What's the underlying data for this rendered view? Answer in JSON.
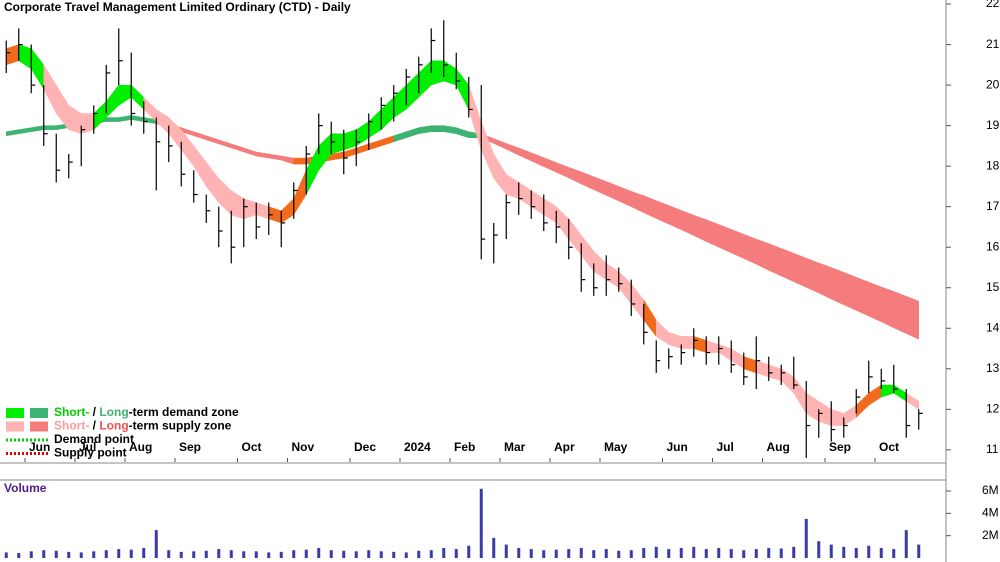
{
  "chart_data": {
    "type": "hlc",
    "title": "Corporate Travel Management Limited Ordinary (CTD) - Daily",
    "categories": [
      null,
      null,
      "Jun",
      null,
      null,
      null,
      "Jul",
      null,
      null,
      null,
      "Aug",
      null,
      null,
      null,
      "Sep",
      null,
      null,
      null,
      null,
      "Oct",
      null,
      null,
      null,
      "Nov",
      null,
      null,
      null,
      null,
      "Dec",
      null,
      null,
      null,
      "2024",
      null,
      null,
      null,
      "Feb",
      null,
      null,
      null,
      "Mar",
      null,
      null,
      null,
      "Apr",
      null,
      null,
      null,
      "May",
      null,
      null,
      null,
      null,
      "Jun",
      null,
      null,
      null,
      "Jul",
      null,
      null,
      null,
      "Aug",
      null,
      null,
      null,
      null,
      "Sep",
      null,
      null,
      null,
      "Oct",
      null,
      null,
      null
    ],
    "high": [
      21.1,
      21.4,
      21.0,
      20.0,
      18.8,
      18.3,
      19.0,
      19.5,
      20.5,
      21.4,
      20.8,
      19.6,
      19.2,
      19.0,
      18.6,
      17.9,
      17.3,
      17.0,
      16.9,
      17.2,
      17.1,
      17.1,
      16.9,
      17.6,
      18.5,
      19.3,
      19.1,
      18.9,
      18.9,
      19.3,
      19.7,
      20.0,
      20.4,
      20.7,
      21.4,
      21.6,
      20.8,
      20.2,
      20.0,
      16.6,
      17.3,
      17.6,
      17.4,
      17.3,
      16.9,
      16.7,
      16.1,
      15.6,
      15.8,
      15.5,
      15.2,
      14.6,
      13.7,
      13.5,
      13.6,
      14.0,
      13.8,
      13.8,
      13.7,
      13.4,
      13.8,
      13.3,
      13.1,
      13.3,
      12.7,
      12.0,
      12.2,
      11.8,
      12.5,
      13.2,
      13.0,
      13.1,
      12.5,
      12.0
    ],
    "low": [
      20.3,
      20.6,
      19.8,
      18.5,
      17.6,
      17.7,
      18.0,
      18.8,
      19.3,
      20.0,
      19.0,
      18.8,
      17.4,
      18.1,
      17.5,
      17.1,
      16.6,
      16.0,
      15.6,
      16.0,
      16.2,
      16.3,
      16.0,
      16.7,
      17.3,
      18.3,
      18.3,
      17.8,
      18.0,
      18.4,
      18.9,
      19.1,
      19.5,
      19.8,
      20.3,
      20.2,
      19.9,
      19.2,
      15.7,
      15.6,
      16.2,
      16.8,
      16.7,
      16.4,
      16.1,
      15.7,
      14.9,
      14.8,
      14.8,
      14.9,
      14.3,
      13.6,
      12.9,
      13.0,
      13.1,
      13.3,
      13.1,
      13.1,
      12.9,
      12.6,
      12.5,
      12.7,
      12.6,
      12.5,
      10.8,
      11.3,
      11.2,
      11.3,
      11.9,
      12.4,
      12.5,
      12.4,
      11.3,
      11.5
    ],
    "close": [
      20.8,
      21.0,
      20.0,
      18.8,
      17.9,
      18.1,
      18.9,
      19.3,
      20.3,
      20.6,
      19.3,
      19.1,
      18.6,
      18.5,
      17.8,
      17.3,
      16.9,
      16.4,
      16.0,
      17.0,
      16.5,
      16.8,
      16.6,
      17.4,
      18.3,
      19.0,
      18.6,
      18.2,
      18.6,
      19.1,
      19.5,
      19.8,
      20.2,
      20.5,
      21.1,
      20.5,
      20.1,
      19.4,
      16.2,
      16.3,
      17.1,
      17.2,
      17.0,
      16.6,
      16.5,
      16.0,
      15.2,
      15.0,
      15.2,
      15.1,
      14.6,
      13.9,
      13.2,
      13.3,
      13.4,
      13.7,
      13.4,
      13.5,
      13.1,
      12.8,
      13.2,
      12.9,
      12.9,
      12.6,
      11.6,
      11.9,
      11.5,
      11.6,
      12.3,
      12.8,
      12.7,
      12.5,
      11.6,
      11.9
    ],
    "bar_color": "#000000",
    "short_band": {
      "upper": [
        20.9,
        21.0,
        20.9,
        20.5,
        20.0,
        19.5,
        19.3,
        19.3,
        19.6,
        20.0,
        20.0,
        19.7,
        19.4,
        19.2,
        18.9,
        18.5,
        18.1,
        17.7,
        17.4,
        17.2,
        17.1,
        17.0,
        16.9,
        17.2,
        17.9,
        18.5,
        18.8,
        18.8,
        18.9,
        19.1,
        19.4,
        19.7,
        20.0,
        20.3,
        20.6,
        20.6,
        20.4,
        20.0,
        19.1,
        18.3,
        17.8,
        17.6,
        17.4,
        17.2,
        17.0,
        16.7,
        16.3,
        15.9,
        15.6,
        15.4,
        15.1,
        14.7,
        14.2,
        13.9,
        13.8,
        13.8,
        13.7,
        13.6,
        13.5,
        13.3,
        13.2,
        13.1,
        13.0,
        12.8,
        12.4,
        12.2,
        12.0,
        11.9,
        12.1,
        12.4,
        12.6,
        12.6,
        12.4,
        12.2
      ],
      "lower": [
        20.5,
        20.6,
        20.4,
        19.9,
        19.3,
        18.9,
        18.8,
        18.9,
        19.2,
        19.5,
        19.7,
        19.4,
        19.1,
        18.8,
        18.4,
        18.0,
        17.5,
        17.1,
        16.8,
        16.7,
        16.8,
        16.7,
        16.6,
        16.8,
        17.3,
        17.9,
        18.3,
        18.4,
        18.5,
        18.7,
        18.9,
        19.2,
        19.4,
        19.7,
        20.0,
        20.1,
        20.0,
        19.4,
        18.4,
        17.7,
        17.3,
        17.2,
        17.0,
        16.8,
        16.6,
        16.2,
        15.8,
        15.4,
        15.2,
        15.0,
        14.6,
        14.2,
        13.8,
        13.6,
        13.5,
        13.5,
        13.4,
        13.4,
        13.2,
        13.0,
        12.9,
        12.8,
        12.7,
        12.4,
        11.9,
        11.7,
        11.6,
        11.6,
        11.8,
        12.1,
        12.3,
        12.4,
        12.2,
        12.0
      ],
      "colors": [
        "#f26b1d",
        "#00ee00",
        "#00ee00",
        "#ffb3b3",
        "#ffb3b3",
        "#ffb3b3",
        "#ffb3b3",
        "#00ee00",
        "#00ee00",
        "#00ee00",
        "#00ee00",
        "#ffb3b3",
        "#ffb3b3",
        "#ffb3b3",
        "#ffb3b3",
        "#ffb3b3",
        "#ffb3b3",
        "#ffb3b3",
        "#ffb3b3",
        "#ffb3b3",
        "#ffb3b3",
        "#f26b1d",
        "#f26b1d",
        "#f26b1d",
        "#00ee00",
        "#00ee00",
        "#00ee00",
        "#00ee00",
        "#00ee00",
        "#00ee00",
        "#00ee00",
        "#00ee00",
        "#00ee00",
        "#00ee00",
        "#00ee00",
        "#00ee00",
        "#00ee00",
        "#ffb3b3",
        "#ffb3b3",
        "#ffb3b3",
        "#ffb3b3",
        "#ffb3b3",
        "#ffb3b3",
        "#ffb3b3",
        "#ffb3b3",
        "#ffb3b3",
        "#ffb3b3",
        "#ffb3b3",
        "#ffb3b3",
        "#ffb3b3",
        "#ffb3b3",
        "#f26b1d",
        "#ffb3b3",
        "#ffb3b3",
        "#ffb3b3",
        "#f26b1d",
        "#ffb3b3",
        "#ffb3b3",
        "#ffb3b3",
        "#f26b1d",
        "#ffb3b3",
        "#ffb3b3",
        "#ffb3b3",
        "#ffb3b3",
        "#ffb3b3",
        "#ffb3b3",
        "#ffb3b3",
        "#ffb3b3",
        "#f26b1d",
        "#f26b1d",
        "#00ee00",
        "#00ee00",
        "#ffb3b3",
        "#ffb3b3"
      ]
    },
    "long_band": {
      "upper": [
        18.85,
        18.9,
        18.95,
        19.0,
        19.0,
        19.05,
        19.1,
        19.15,
        19.2,
        19.2,
        19.25,
        19.2,
        19.15,
        19.05,
        18.95,
        18.85,
        18.75,
        18.65,
        18.55,
        18.45,
        18.35,
        18.3,
        18.25,
        18.2,
        18.2,
        18.25,
        18.3,
        18.35,
        18.45,
        18.55,
        18.65,
        18.75,
        18.85,
        18.95,
        19.0,
        19.0,
        18.95,
        18.85,
        18.8,
        18.68,
        18.56,
        18.45,
        18.33,
        18.21,
        18.09,
        17.97,
        17.86,
        17.74,
        17.62,
        17.5,
        17.38,
        17.27,
        17.15,
        17.03,
        16.91,
        16.79,
        16.68,
        16.56,
        16.44,
        16.32,
        16.2,
        16.09,
        15.97,
        15.85,
        15.73,
        15.61,
        15.5,
        15.38,
        15.26,
        15.14,
        15.02,
        14.91,
        14.79,
        14.67
      ],
      "lower": [
        18.75,
        18.8,
        18.85,
        18.9,
        18.9,
        18.95,
        19.0,
        19.05,
        19.1,
        19.1,
        19.15,
        19.1,
        19.05,
        18.95,
        18.85,
        18.75,
        18.65,
        18.55,
        18.45,
        18.35,
        18.25,
        18.2,
        18.15,
        18.05,
        18.05,
        18.1,
        18.15,
        18.2,
        18.3,
        18.4,
        18.5,
        18.6,
        18.7,
        18.8,
        18.85,
        18.85,
        18.8,
        18.7,
        18.7,
        18.56,
        18.42,
        18.27,
        18.13,
        17.99,
        17.85,
        17.71,
        17.56,
        17.42,
        17.28,
        17.14,
        17.0,
        16.85,
        16.71,
        16.57,
        16.43,
        16.29,
        16.14,
        16.0,
        15.86,
        15.72,
        15.58,
        15.43,
        15.29,
        15.15,
        15.01,
        14.87,
        14.72,
        14.58,
        14.44,
        14.3,
        14.16,
        14.01,
        13.87,
        13.73
      ],
      "colors": [
        "#3cb371",
        "#3cb371",
        "#3cb371",
        "#3cb371",
        "#3cb371",
        "#3cb371",
        "#3cb371",
        "#3cb371",
        "#3cb371",
        "#3cb371",
        "#3cb371",
        "#3cb371",
        "#f47c7c",
        "#f47c7c",
        "#f47c7c",
        "#f47c7c",
        "#f47c7c",
        "#f47c7c",
        "#f47c7c",
        "#f47c7c",
        "#f47c7c",
        "#f47c7c",
        "#f47c7c",
        "#f26b1d",
        "#f26b1d",
        "#f26b1d",
        "#f26b1d",
        "#f26b1d",
        "#f26b1d",
        "#f26b1d",
        "#f26b1d",
        "#3cb371",
        "#3cb371",
        "#3cb371",
        "#3cb371",
        "#3cb371",
        "#3cb371",
        "#3cb371",
        "#f47c7c",
        "#f47c7c",
        "#f47c7c",
        "#f47c7c",
        "#f47c7c",
        "#f47c7c",
        "#f47c7c",
        "#f47c7c",
        "#f47c7c",
        "#f47c7c",
        "#f47c7c",
        "#f47c7c",
        "#f47c7c",
        "#f47c7c",
        "#f47c7c",
        "#f47c7c",
        "#f47c7c",
        "#f47c7c",
        "#f47c7c",
        "#f47c7c",
        "#f47c7c",
        "#f47c7c",
        "#f47c7c",
        "#f47c7c",
        "#f47c7c",
        "#f47c7c",
        "#f47c7c",
        "#f47c7c",
        "#f47c7c",
        "#f47c7c",
        "#f47c7c",
        "#f47c7c",
        "#f47c7c",
        "#f47c7c",
        "#f47c7c",
        "#f47c7c"
      ]
    },
    "ylim": [
      10.7,
      22.1
    ],
    "yticks": [
      11,
      12,
      13,
      14,
      15,
      16,
      17,
      18,
      19,
      20,
      21,
      22
    ],
    "legend": [
      {
        "swatches": [
          "#00ee00",
          "#3cb371"
        ],
        "parts": [
          {
            "text": "Short-",
            "color": "#00cc00"
          },
          {
            "text": " / ",
            "color": "#000000"
          },
          {
            "text": "Long",
            "color": "#3cb371"
          },
          {
            "text": "-term demand zone",
            "color": "#000000"
          }
        ]
      },
      {
        "swatches": [
          "#ffb3b3",
          "#f47c7c"
        ],
        "parts": [
          {
            "text": "Short-",
            "color": "#ff9999"
          },
          {
            "text": " / ",
            "color": "#000000"
          },
          {
            "text": "Long",
            "color": "#f05050"
          },
          {
            "text": "-term supply zone",
            "color": "#000000"
          }
        ]
      },
      {
        "dotted": "#00cc00",
        "parts": [
          {
            "text": "Demand point",
            "color": "#000000"
          }
        ]
      },
      {
        "dotted": "#dd0000",
        "parts": [
          {
            "text": "Supply point",
            "color": "#000000"
          }
        ]
      }
    ],
    "volume": {
      "label": "Volume",
      "color": "#3a3aa8",
      "values": [
        500000,
        450000,
        600000,
        700000,
        650000,
        550000,
        500000,
        600000,
        700000,
        800000,
        750000,
        900000,
        2500000,
        700000,
        550000,
        600000,
        650000,
        800000,
        700000,
        600000,
        600000,
        500000,
        550000,
        700000,
        750000,
        900000,
        700000,
        650000,
        600000,
        700000,
        600000,
        550000,
        500000,
        650000,
        700000,
        900000,
        800000,
        1100000,
        6200000,
        1800000,
        1200000,
        900000,
        800000,
        700000,
        750000,
        800000,
        900000,
        700000,
        800000,
        650000,
        700000,
        900000,
        1000000,
        800000,
        900000,
        1000000,
        800000,
        900000,
        800000,
        700000,
        800000,
        900000,
        850000,
        1000000,
        3500000,
        1500000,
        1200000,
        1000000,
        900000,
        1100000,
        900000,
        800000,
        2500000,
        1200000
      ],
      "ylim": [
        0,
        6900000
      ],
      "yticks": [
        {
          "value": 2000000,
          "label": "2M"
        },
        {
          "value": 4000000,
          "label": "4M"
        },
        {
          "value": 6000000,
          "label": "6M"
        }
      ]
    }
  }
}
